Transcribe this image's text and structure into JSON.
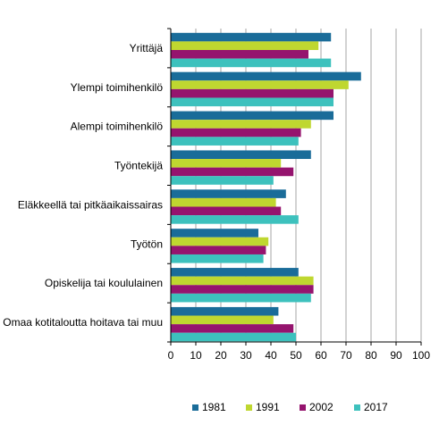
{
  "chart_data": {
    "type": "bar",
    "orientation": "horizontal",
    "categories": [
      "Yrittäjä",
      "Ylempi toimihenkilö",
      "Alempi toimihenkilö",
      "Työntekijä",
      "Eläkkeellä tai pitkäaikaissairas",
      "Työtön",
      "Opiskelija tai koululainen",
      "Omaa kotitaloutta hoitava tai muu"
    ],
    "series": [
      {
        "name": "1981",
        "color": "#1a6c99",
        "values": [
          64,
          76,
          65,
          56,
          46,
          35,
          51,
          43
        ]
      },
      {
        "name": "1991",
        "color": "#bfd730",
        "values": [
          59,
          71,
          56,
          44,
          42,
          39,
          57,
          41
        ]
      },
      {
        "name": "2002",
        "color": "#95146e",
        "values": [
          55,
          65,
          52,
          49,
          44,
          38,
          57,
          49
        ]
      },
      {
        "name": "2017",
        "color": "#3dc1bd",
        "values": [
          64,
          65,
          51,
          41,
          51,
          37,
          56,
          50
        ]
      }
    ],
    "xlim": [
      0,
      100
    ],
    "xticks": [
      0,
      10,
      20,
      30,
      40,
      50,
      60,
      70,
      80,
      90,
      100
    ],
    "grid": true,
    "legend": "bottom"
  }
}
